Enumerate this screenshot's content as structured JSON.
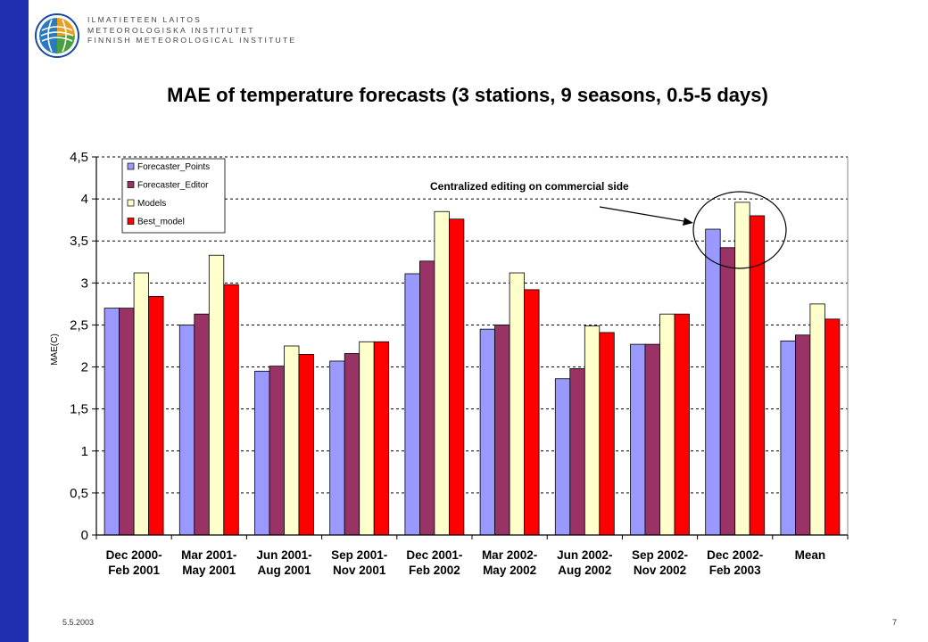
{
  "header": {
    "institute_lines": [
      "ILMATIETEEN LAITOS",
      "METEOROLOGISKA INSTITUTET",
      "FINNISH METEOROLOGICAL INSTITUTE"
    ]
  },
  "footer": {
    "date": "5.5.2003",
    "page": "7"
  },
  "colors": {
    "left_bar": "#1f2fb0",
    "Forecaster_Points": "#9999ff",
    "Forecaster_Editor": "#993366",
    "Models": "#ffffcc",
    "Best_model": "#ff0000"
  },
  "chart_data": {
    "type": "bar",
    "title": "MAE of temperature forecasts (3 stations, 9 seasons, 0.5-5 days)",
    "ylabel": "MAE(C)",
    "xlabel": "",
    "ylim": [
      0,
      4.5
    ],
    "yticks": [
      "0",
      "0,5",
      "1",
      "1,5",
      "2",
      "2,5",
      "3",
      "3,5",
      "4",
      "4,5"
    ],
    "grid": "horizontal dashed",
    "legend_position": "top-left",
    "categories": [
      [
        "Dec 2000-",
        "Feb 2001"
      ],
      [
        "Mar 2001-",
        "May 2001"
      ],
      [
        "Jun 2001-",
        "Aug 2001"
      ],
      [
        "Sep 2001-",
        "Nov 2001"
      ],
      [
        "Dec 2001-",
        "Feb 2002"
      ],
      [
        "Mar 2002-",
        "May 2002"
      ],
      [
        "Jun 2002-",
        "Aug 2002"
      ],
      [
        "Sep 2002-",
        "Nov 2002"
      ],
      [
        "Dec 2002-",
        "Feb 2003"
      ],
      [
        "Mean"
      ]
    ],
    "series": [
      {
        "name": "Forecaster_Points",
        "values": [
          2.7,
          2.5,
          1.95,
          2.07,
          3.11,
          2.45,
          1.86,
          2.27,
          3.64,
          2.31
        ]
      },
      {
        "name": "Forecaster_Editor",
        "values": [
          2.7,
          2.63,
          2.01,
          2.16,
          3.26,
          2.5,
          1.98,
          2.27,
          3.42,
          2.38
        ]
      },
      {
        "name": "Models",
        "values": [
          3.12,
          3.33,
          2.25,
          2.3,
          3.85,
          3.12,
          2.49,
          2.63,
          3.96,
          2.75
        ]
      },
      {
        "name": "Best_model",
        "values": [
          2.84,
          2.98,
          2.15,
          2.3,
          3.76,
          2.92,
          2.41,
          2.63,
          3.8,
          2.57
        ]
      }
    ],
    "annotation": "Centralized editing on commercial side"
  }
}
